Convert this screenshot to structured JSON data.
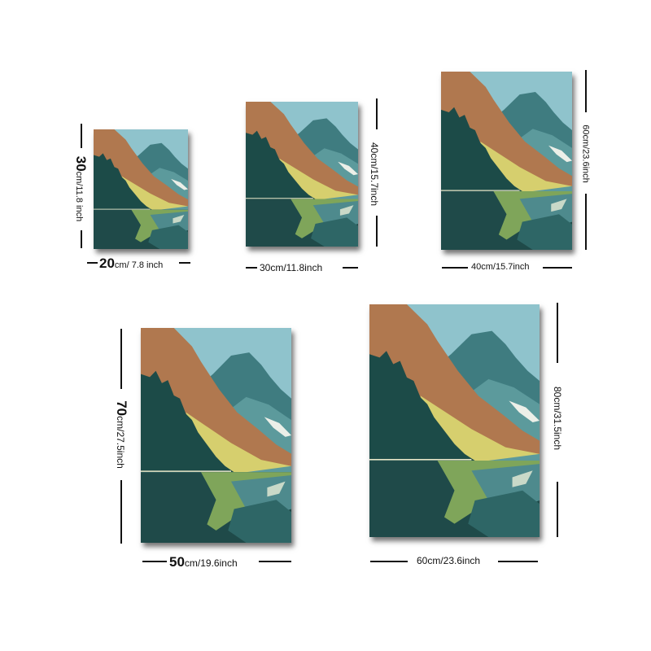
{
  "sizes": [
    {
      "width_num": "20",
      "width_unit": "cm/ 7.8 inch",
      "height_num": "30",
      "height_unit": "cm/11.8 inch"
    },
    {
      "width_text": "30cm/11.8inch",
      "height_text": "40cm/15.7inch"
    },
    {
      "width_text": "40cm/15.7inch",
      "height_text": "60cm/23.6inch"
    },
    {
      "width_num": "50",
      "width_unit": "cm/19.6inch",
      "height_num": "70",
      "height_unit": "cm/27.5inch"
    },
    {
      "width_text": "60cm/23.6inch",
      "height_text": "80cm/31.5inch"
    }
  ],
  "artwork": {
    "subject": "mountain-lake-landscape",
    "colors": {
      "sky": "#8fc3cc",
      "ochre": "#b0784f",
      "forest": "#1c4b48",
      "hills": "#4e8a8d",
      "meadow": "#d6cf6e",
      "water": "#1f4a49",
      "reflection": "#7fa55a"
    }
  }
}
